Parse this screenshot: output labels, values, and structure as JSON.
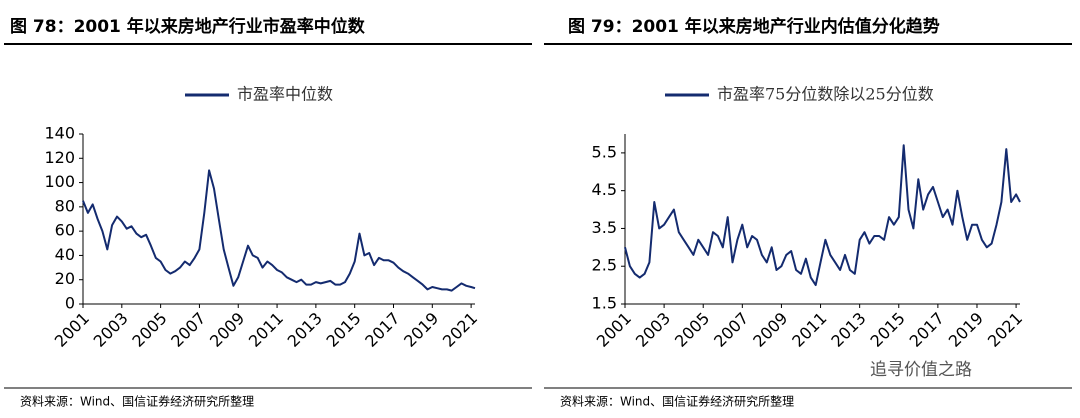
{
  "chart_data": [
    {
      "type": "line",
      "title": "图 78：2001 年以来房地产行业市盈率中位数",
      "source": "资料来源：Wind、国信证券经济研究所整理",
      "x": [
        2001,
        2001.25,
        2001.5,
        2001.75,
        2002,
        2002.25,
        2002.5,
        2002.75,
        2003,
        2003.25,
        2003.5,
        2003.75,
        2004,
        2004.25,
        2004.5,
        2004.75,
        2005,
        2005.25,
        2005.5,
        2005.75,
        2006,
        2006.25,
        2006.5,
        2006.75,
        2007,
        2007.25,
        2007.5,
        2007.75,
        2008,
        2008.25,
        2008.5,
        2008.75,
        2009,
        2009.25,
        2009.5,
        2009.75,
        2010,
        2010.25,
        2010.5,
        2010.75,
        2011,
        2011.25,
        2011.5,
        2011.75,
        2012,
        2012.25,
        2012.5,
        2012.75,
        2013,
        2013.25,
        2013.5,
        2013.75,
        2014,
        2014.25,
        2014.5,
        2014.75,
        2015,
        2015.25,
        2015.5,
        2015.75,
        2016,
        2016.25,
        2016.5,
        2016.75,
        2017,
        2017.25,
        2017.5,
        2017.75,
        2018,
        2018.25,
        2018.5,
        2018.75,
        2019,
        2019.25,
        2019.5,
        2019.75,
        2020,
        2020.25,
        2020.5,
        2020.75,
        2021,
        2021.2
      ],
      "series": [
        {
          "name": "市盈率中位数",
          "color": "#142b6f",
          "values": [
            85,
            75,
            82,
            70,
            60,
            45,
            65,
            72,
            68,
            62,
            64,
            58,
            55,
            57,
            48,
            38,
            35,
            28,
            25,
            27,
            30,
            35,
            32,
            38,
            45,
            75,
            110,
            95,
            70,
            45,
            30,
            15,
            22,
            35,
            48,
            40,
            38,
            30,
            35,
            32,
            28,
            26,
            22,
            20,
            18,
            20,
            16,
            16,
            18,
            17,
            18,
            19,
            16,
            16,
            18,
            25,
            35,
            58,
            40,
            42,
            32,
            38,
            36,
            36,
            34,
            30,
            27,
            25,
            22,
            19,
            16,
            12,
            14,
            13,
            12,
            12,
            11,
            14,
            17,
            15,
            14,
            13
          ]
        }
      ],
      "xlim": [
        2001,
        2021.2
      ],
      "xticks": [
        2001,
        2003,
        2005,
        2007,
        2009,
        2011,
        2013,
        2015,
        2017,
        2019,
        2021
      ],
      "ylim": [
        0,
        140
      ],
      "yticks": [
        0,
        20,
        40,
        60,
        80,
        100,
        120,
        140
      ]
    },
    {
      "type": "line",
      "title": "图 79：2001 年以来房地产行业内估值分化趋势",
      "source": "资料来源：Wind、国信证券经济研究所整理",
      "x": [
        2001,
        2001.25,
        2001.5,
        2001.75,
        2002,
        2002.25,
        2002.5,
        2002.75,
        2003,
        2003.25,
        2003.5,
        2003.75,
        2004,
        2004.25,
        2004.5,
        2004.75,
        2005,
        2005.25,
        2005.5,
        2005.75,
        2006,
        2006.25,
        2006.5,
        2006.75,
        2007,
        2007.25,
        2007.5,
        2007.75,
        2008,
        2008.25,
        2008.5,
        2008.75,
        2009,
        2009.25,
        2009.5,
        2009.75,
        2010,
        2010.25,
        2010.5,
        2010.75,
        2011,
        2011.25,
        2011.5,
        2011.75,
        2012,
        2012.25,
        2012.5,
        2012.75,
        2013,
        2013.25,
        2013.5,
        2013.75,
        2014,
        2014.25,
        2014.5,
        2014.75,
        2015,
        2015.25,
        2015.5,
        2015.75,
        2016,
        2016.25,
        2016.5,
        2016.75,
        2017,
        2017.25,
        2017.5,
        2017.75,
        2018,
        2018.25,
        2018.5,
        2018.75,
        2019,
        2019.25,
        2019.5,
        2019.75,
        2020,
        2020.25,
        2020.5,
        2020.75,
        2021,
        2021.2
      ],
      "series": [
        {
          "name": "市盈率75分位数除以25分位数",
          "color": "#142b6f",
          "values": [
            3.0,
            2.5,
            2.3,
            2.2,
            2.3,
            2.6,
            4.2,
            3.5,
            3.6,
            3.8,
            4.0,
            3.4,
            3.2,
            3.0,
            2.8,
            3.2,
            3.0,
            2.8,
            3.4,
            3.3,
            3.0,
            3.8,
            2.6,
            3.2,
            3.6,
            3.0,
            3.3,
            3.2,
            2.8,
            2.6,
            3.0,
            2.4,
            2.5,
            2.8,
            2.9,
            2.4,
            2.3,
            2.7,
            2.2,
            2.0,
            2.6,
            3.2,
            2.8,
            2.6,
            2.4,
            2.8,
            2.4,
            2.3,
            3.2,
            3.4,
            3.1,
            3.3,
            3.3,
            3.2,
            3.8,
            3.6,
            3.8,
            5.7,
            4.0,
            3.5,
            4.8,
            4.0,
            4.4,
            4.6,
            4.2,
            3.8,
            4.0,
            3.6,
            4.5,
            3.8,
            3.2,
            3.6,
            3.6,
            3.2,
            3.0,
            3.1,
            3.6,
            4.2,
            5.6,
            4.2,
            4.4,
            4.2
          ]
        }
      ],
      "xlim": [
        2001,
        2021.2
      ],
      "xticks": [
        2001,
        2003,
        2005,
        2007,
        2009,
        2011,
        2013,
        2015,
        2017,
        2019,
        2021
      ],
      "ylim": [
        1.5,
        6.0
      ],
      "yticks": [
        1.5,
        2.5,
        3.5,
        4.5,
        5.5
      ]
    }
  ],
  "watermark": "追寻价值之路"
}
